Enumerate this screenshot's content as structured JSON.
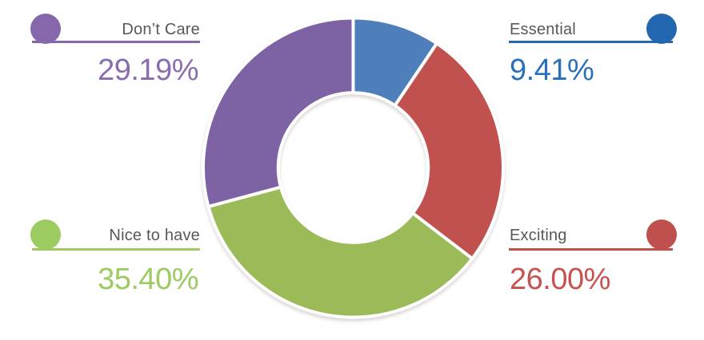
{
  "chart_data": {
    "type": "pie",
    "subtype": "donut",
    "title": "",
    "start_angle_deg": 0,
    "direction": "clockwise",
    "inner_radius_ratio": 0.5,
    "legend_position": "corners",
    "label_color": "#58585A",
    "background_color": "#FFFFFF",
    "slices": [
      {
        "label": "Essential",
        "value": 9.41,
        "display": "9.41%",
        "color": "#4E7FBA",
        "legend_color": "#2267B0",
        "pct_color": "#2B6FBA"
      },
      {
        "label": "Exciting",
        "value": 26.0,
        "display": "26.00%",
        "color": "#C1514F",
        "legend_color": "#C0504D",
        "pct_color": "#C6534F"
      },
      {
        "label": "Nice to have",
        "value": 35.4,
        "display": "35.40%",
        "color": "#9BBB59",
        "legend_color": "#9CCB62",
        "pct_color": "#9CCB62"
      },
      {
        "label": "Don’t Care",
        "value": 29.19,
        "display": "29.19%",
        "color": "#7E63A4",
        "legend_color": "#8667AB",
        "pct_color": "#8A6CB0"
      }
    ]
  }
}
